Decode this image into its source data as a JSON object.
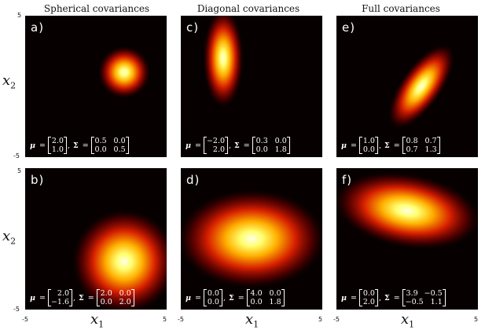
{
  "columns": [
    "Spherical covariances",
    "Diagonal covariances",
    "Full covariances"
  ],
  "axis": {
    "x_symbol": "x",
    "x_sub": "1",
    "y_symbol": "x",
    "y_sub": "2",
    "min": "-5",
    "max": "5"
  },
  "symbols": {
    "mu": "μ",
    "sigma": "Σ",
    "equals": "=",
    "comma": ","
  },
  "panels": [
    {
      "label": "a)",
      "mu": [
        2.0,
        1.0
      ],
      "cov": [
        [
          0.5,
          0.0
        ],
        [
          0.0,
          0.5
        ]
      ],
      "mu_text": [
        "2.0",
        "1.0"
      ],
      "cov_text": [
        [
          "0.5",
          "0.0"
        ],
        [
          "0.0",
          "0.5"
        ]
      ]
    },
    {
      "label": "c)",
      "mu": [
        -2.0,
        2.0
      ],
      "cov": [
        [
          0.3,
          0.0
        ],
        [
          0.0,
          1.8
        ]
      ],
      "mu_text": [
        "−2.0",
        "2.0"
      ],
      "cov_text": [
        [
          "0.3",
          "0.0"
        ],
        [
          "0.0",
          "1.8"
        ]
      ]
    },
    {
      "label": "e)",
      "mu": [
        1.0,
        0.0
      ],
      "cov": [
        [
          0.8,
          0.7
        ],
        [
          0.7,
          1.3
        ]
      ],
      "mu_text": [
        "1.0",
        "0.0"
      ],
      "cov_text": [
        [
          "0.8",
          "0.7"
        ],
        [
          "0.7",
          "1.3"
        ]
      ]
    },
    {
      "label": "b)",
      "mu": [
        2.0,
        -1.6
      ],
      "cov": [
        [
          2.0,
          0.0
        ],
        [
          0.0,
          2.0
        ]
      ],
      "mu_text": [
        "2.0",
        "−1.6"
      ],
      "cov_text": [
        [
          "2.0",
          "0.0"
        ],
        [
          "0.0",
          "2.0"
        ]
      ]
    },
    {
      "label": "d)",
      "mu": [
        0.0,
        0.0
      ],
      "cov": [
        [
          4.0,
          0.0
        ],
        [
          0.0,
          1.8
        ]
      ],
      "mu_text": [
        "0.0",
        "0.0"
      ],
      "cov_text": [
        [
          "4.0",
          "0.0"
        ],
        [
          "0.0",
          "1.8"
        ]
      ]
    },
    {
      "label": "f)",
      "mu": [
        0.0,
        2.0
      ],
      "cov": [
        [
          3.9,
          -0.5
        ],
        [
          -0.5,
          1.1
        ]
      ],
      "mu_text": [
        "0.0",
        "2.0"
      ],
      "cov_text": [
        [
          "3.9",
          "−0.5"
        ],
        [
          "−0.5",
          "1.1"
        ]
      ]
    }
  ]
}
